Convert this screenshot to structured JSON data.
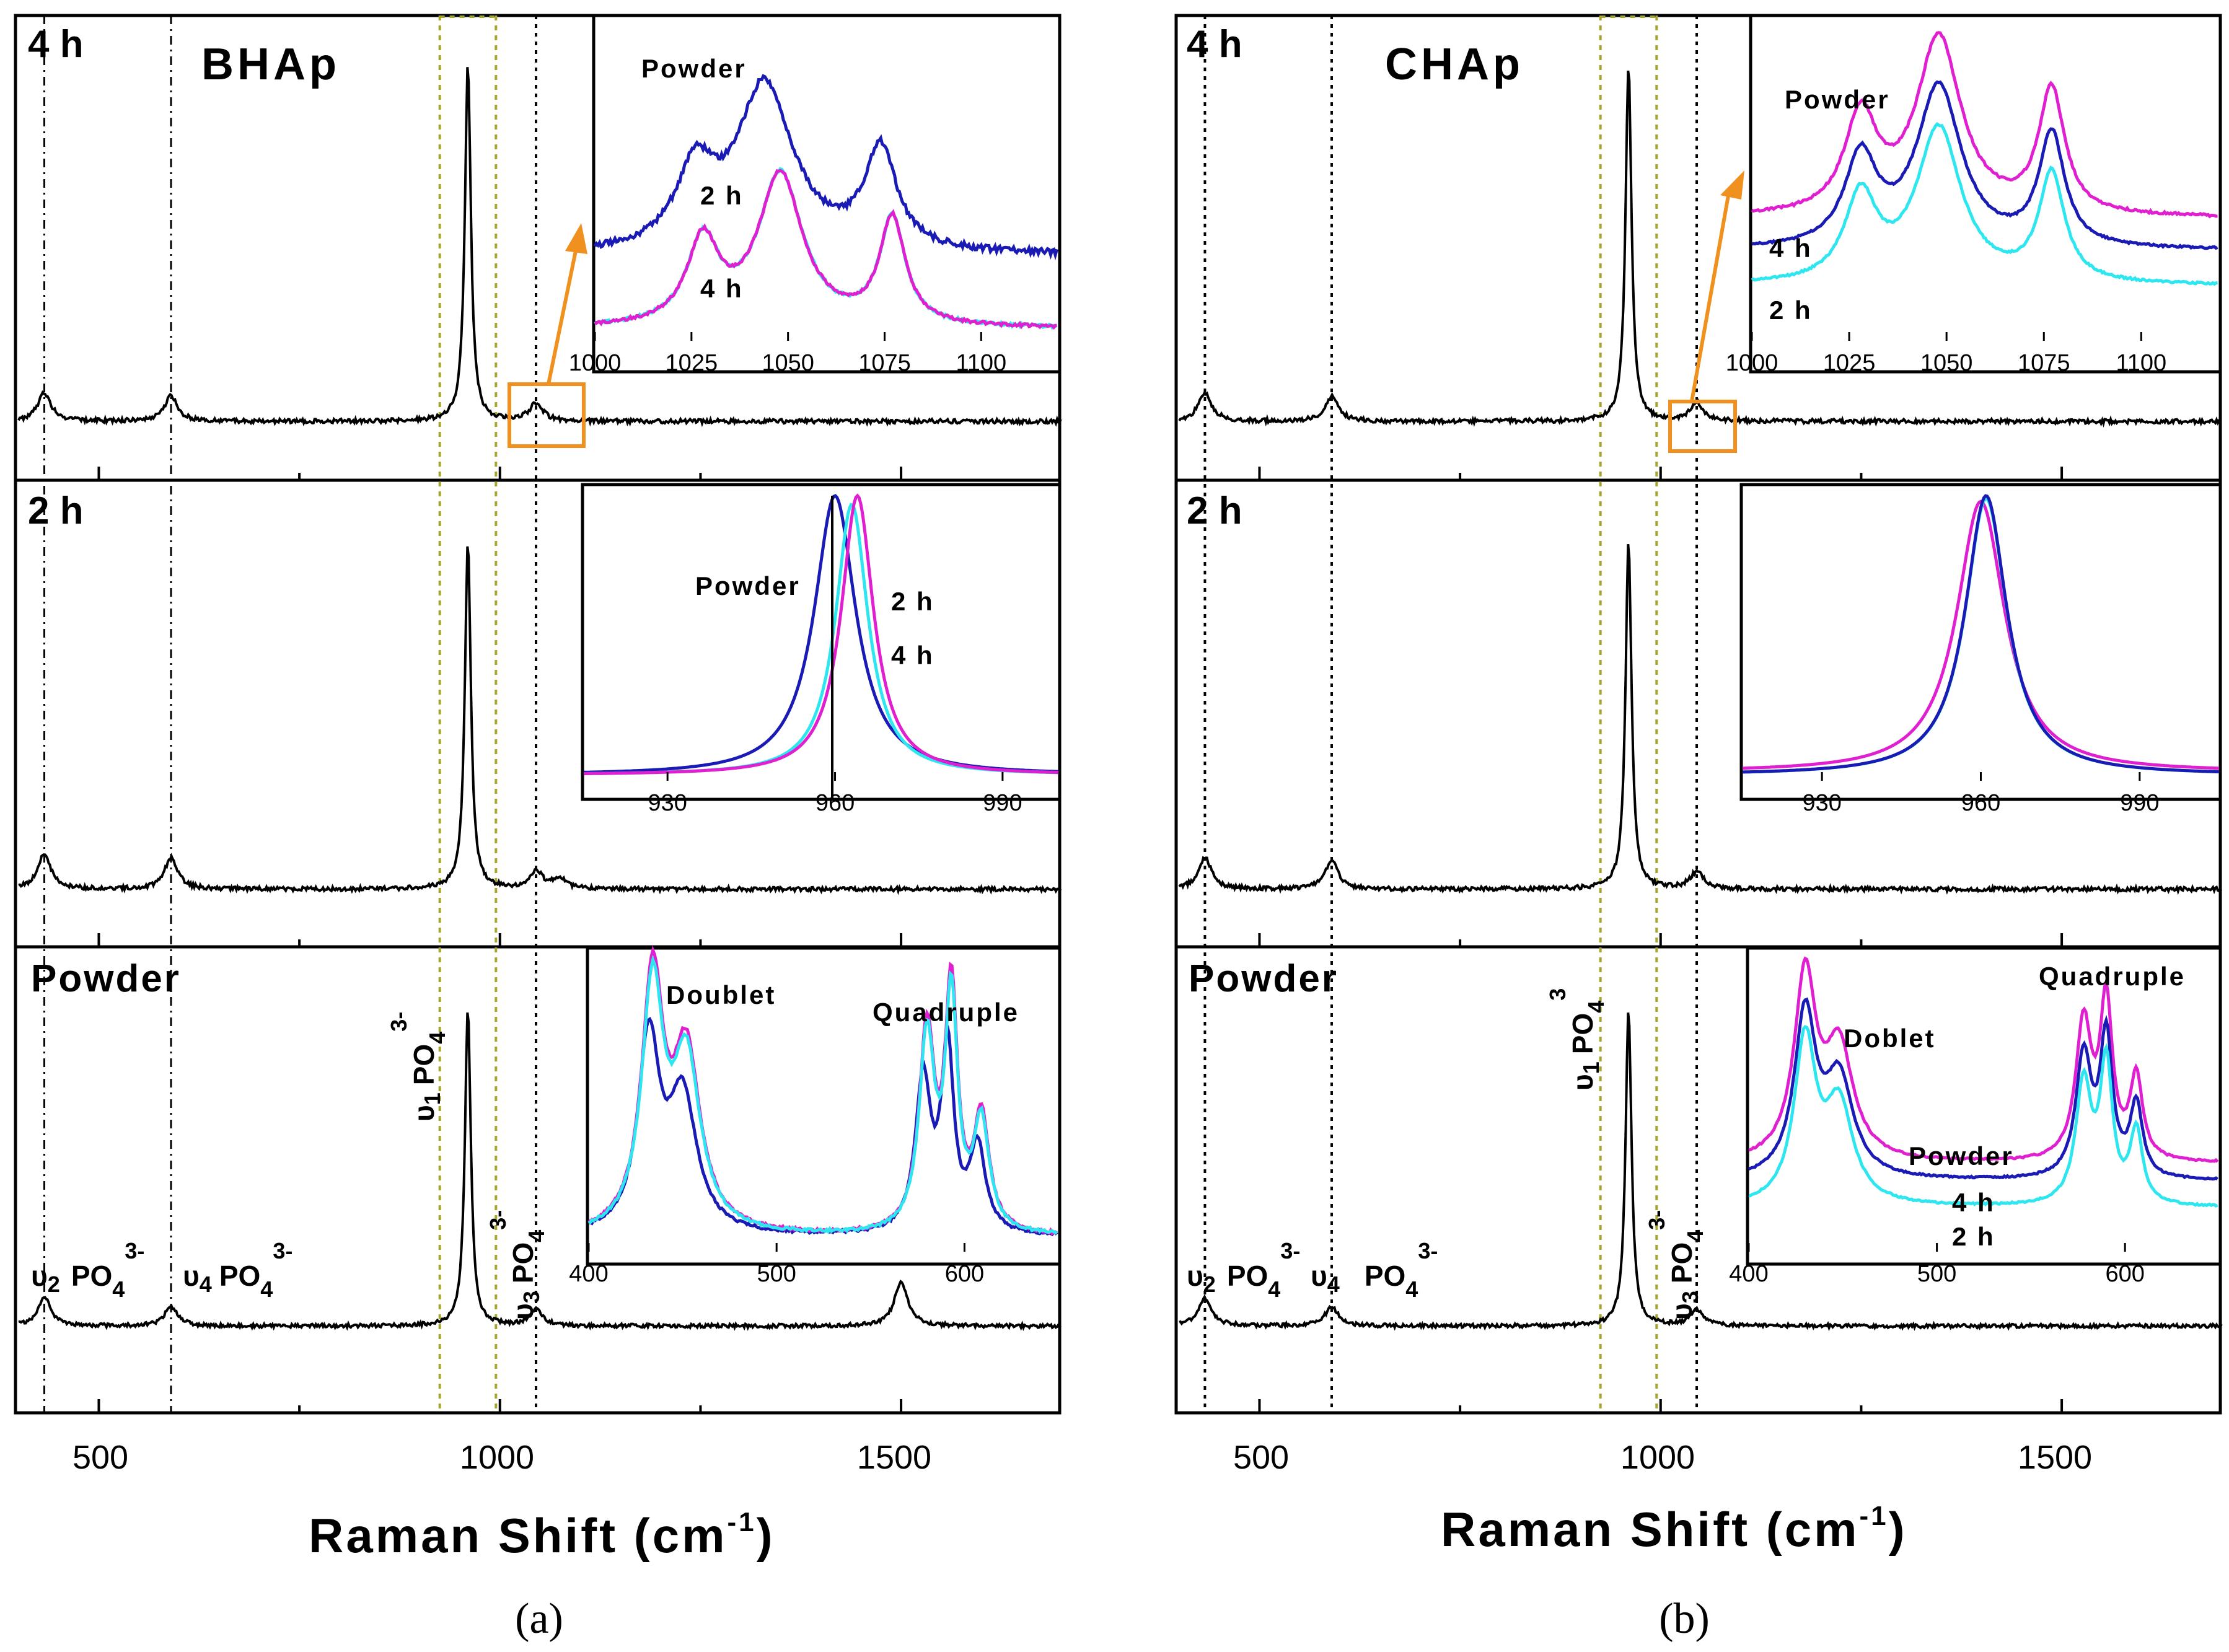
{
  "figure": {
    "panels": [
      {
        "id": "a",
        "caption": "(a)",
        "title": "BHAp",
        "xlabel_main": "Raman Shift (cm",
        "xlabel_sup": "-1",
        "xlabel_close": ")",
        "xticks": [
          "500",
          "1000",
          "1500"
        ],
        "subplot_labels": [
          "4 h",
          "2 h",
          "Powder"
        ]
      },
      {
        "id": "b",
        "caption": "(b)",
        "title": "CHAp",
        "xlabel_main": "Raman Shift (cm",
        "xlabel_sup": "-1",
        "xlabel_close": ")",
        "xticks": [
          "500",
          "1000",
          "1500"
        ],
        "subplot_labels": [
          "4 h",
          "2 h",
          "Powder"
        ]
      }
    ],
    "band_labels": {
      "v1": "υ₁ PO₄³⁻",
      "v1_b": "υ₁ PO₄³",
      "v2": "υ₂ PO₄³⁻",
      "v3": "υ₃ PO₄³⁻",
      "v4": "υ₄ PO₄³⁻"
    },
    "band_parts": {
      "v": "υ",
      "po": "PO",
      "sub4": "4",
      "sup3": "3-",
      "sup3b": "3",
      "sub1": "1",
      "sub2": "2",
      "sub3": "3"
    },
    "inset_labels": {
      "a_top": [
        "Powder",
        "2 h",
        "4 h"
      ],
      "a_mid": [
        "Powder",
        "2 h",
        "4 h"
      ],
      "a_bot": [
        "Doublet",
        "Quadruple"
      ],
      "b_top": [
        "Powder",
        "4 h",
        "2 h"
      ],
      "b_bot": [
        "Doblet",
        "Quadruple",
        "Powder",
        "4 h",
        "2 h"
      ]
    },
    "inset_ticks": {
      "top": [
        "1000",
        "1025",
        "1050",
        "1075",
        "1100"
      ],
      "mid": [
        "930",
        "960",
        "990"
      ],
      "bot": [
        "400",
        "500",
        "600"
      ]
    },
    "colors": {
      "powder": "#1a1ab4",
      "h2": "#2ee6f0",
      "h4": "#e020d0",
      "orange": "#f0901e",
      "olive": "#a6a62a",
      "main": "#000000"
    }
  },
  "chart_data": [
    {
      "type": "line",
      "panel": "a",
      "title": "BHAp",
      "xlabel": "Raman Shift (cm-1)",
      "xlim": [
        400,
        1700
      ],
      "series": [
        {
          "name": "4 h",
          "peaks": [
            [
              432,
              0.08
            ],
            [
              590,
              0.07
            ],
            [
              960,
              1.0
            ],
            [
              1045,
              0.05
            ]
          ]
        },
        {
          "name": "2 h",
          "peaks": [
            [
              432,
              0.1
            ],
            [
              590,
              0.09
            ],
            [
              960,
              1.0
            ],
            [
              1045,
              0.05
            ],
            [
              1075,
              0.03
            ]
          ]
        },
        {
          "name": "Powder",
          "peaks": [
            [
              432,
              0.09
            ],
            [
              590,
              0.06
            ],
            [
              960,
              1.0
            ],
            [
              1045,
              0.05
            ],
            [
              1500,
              0.14
            ]
          ]
        }
      ],
      "markers_dashdot": [
        432,
        590
      ],
      "markers_dotted": [
        1045
      ],
      "highlight_band": [
        925,
        995
      ],
      "insets": [
        {
          "range": [
            1000,
            1120
          ],
          "series": [
            "Powder",
            "2 h",
            "4 h"
          ],
          "peaks_cm": [
            1028,
            1048,
            1077
          ]
        },
        {
          "range": [
            915,
            1000
          ],
          "series": [
            "Powder",
            "2 h",
            "4 h"
          ],
          "peak_cm": {
            "Powder": 960,
            "2 h": 963,
            "4 h": 964
          }
        },
        {
          "range": [
            400,
            650
          ],
          "series": [
            "Powder",
            "2 h",
            "4 h"
          ],
          "peaks_cm": [
            432,
            448,
            580,
            590,
            608
          ]
        }
      ]
    },
    {
      "type": "line",
      "panel": "b",
      "title": "CHAp",
      "xlabel": "Raman Shift (cm-1)",
      "xlim": [
        400,
        1700
      ],
      "series": [
        {
          "name": "4 h",
          "peaks": [
            [
              432,
              0.08
            ],
            [
              590,
              0.07
            ],
            [
              960,
              1.0
            ],
            [
              1045,
              0.05
            ]
          ]
        },
        {
          "name": "2 h",
          "peaks": [
            [
              432,
              0.09
            ],
            [
              590,
              0.08
            ],
            [
              960,
              1.0
            ],
            [
              1045,
              0.05
            ]
          ]
        },
        {
          "name": "Powder",
          "peaks": [
            [
              432,
              0.09
            ],
            [
              590,
              0.06
            ],
            [
              960,
              1.0
            ],
            [
              1045,
              0.05
            ]
          ]
        }
      ],
      "markers_dotted": [
        432,
        590,
        1045
      ],
      "highlight_band": [
        925,
        995
      ],
      "insets": [
        {
          "range": [
            1000,
            1120
          ],
          "series": [
            "Powder",
            "4 h",
            "2 h"
          ],
          "peaks_cm": [
            1028,
            1048,
            1077
          ]
        },
        {
          "range": [
            915,
            1005
          ],
          "series": [
            "Powder",
            "2 h",
            "4 h"
          ],
          "peak_cm": {
            "Powder": 961,
            "2 h": 961,
            "4 h": 961
          }
        },
        {
          "range": [
            400,
            650
          ],
          "series": [
            "Powder",
            "4 h",
            "2 h"
          ],
          "peaks_cm": [
            432,
            448,
            580,
            590,
            608
          ]
        }
      ]
    }
  ]
}
